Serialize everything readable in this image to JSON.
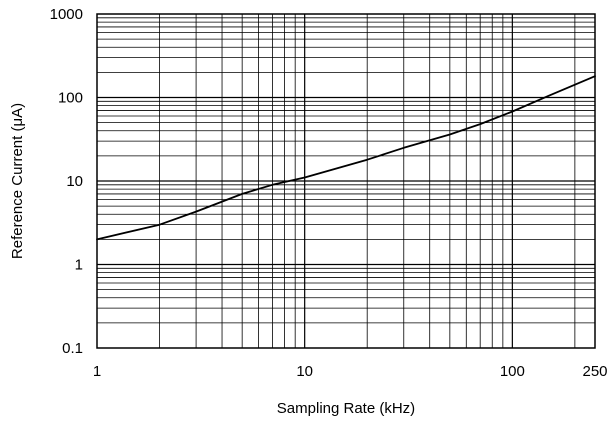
{
  "chart_data": {
    "type": "line",
    "title": "",
    "xlabel": "Sampling Rate (kHz)",
    "ylabel": "Reference Current (μA)",
    "x_scale": "log",
    "y_scale": "log",
    "xlim": [
      1,
      250
    ],
    "ylim": [
      0.1,
      1000
    ],
    "grid": true,
    "x_ticks": [
      1,
      10,
      100,
      250
    ],
    "x_tick_labels": [
      "1",
      "10",
      "100",
      "250"
    ],
    "y_ticks": [
      0.1,
      1,
      10,
      100,
      1000
    ],
    "y_tick_labels": [
      "0.1",
      "1",
      "10",
      "100",
      "1000"
    ],
    "series": [
      {
        "x": [
          1,
          2,
          3,
          5,
          7,
          10,
          20,
          30,
          50,
          70,
          100,
          150,
          250
        ],
        "y": [
          2,
          3,
          4.3,
          7,
          9,
          11,
          18,
          25,
          36,
          48,
          68,
          105,
          180
        ]
      }
    ]
  },
  "colors": {
    "line": "#000000",
    "grid": "#000000",
    "background": "#ffffff"
  }
}
